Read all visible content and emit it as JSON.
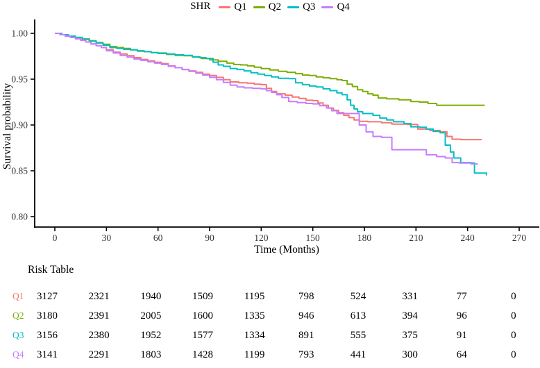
{
  "chart_data": {
    "type": "line",
    "subtype": "kaplan-meier-step",
    "title": "",
    "legend_title": "SHR",
    "legend_position": "top",
    "grid": false,
    "xlabel": "Time (Months)",
    "ylabel": "Survival probability",
    "x_ticks": [
      0,
      30,
      60,
      90,
      120,
      150,
      180,
      210,
      240,
      270
    ],
    "y_ticks": [
      1.0,
      0.95,
      0.9,
      0.85,
      0.8
    ],
    "xlim": [
      0,
      284
    ],
    "ylim": [
      0.8,
      1.0
    ],
    "series": [
      {
        "name": "Q1",
        "color": "#F8766D",
        "points": [
          [
            0,
            1.0
          ],
          [
            3,
            0.9985
          ],
          [
            6,
            0.997
          ],
          [
            9,
            0.9955
          ],
          [
            12,
            0.994
          ],
          [
            15,
            0.9925
          ],
          [
            18,
            0.9905
          ],
          [
            21,
            0.9885
          ],
          [
            24,
            0.9865
          ],
          [
            27,
            0.9845
          ],
          [
            30,
            0.982
          ],
          [
            34,
            0.9795
          ],
          [
            38,
            0.9775
          ],
          [
            42,
            0.9755
          ],
          [
            46,
            0.9735
          ],
          [
            50,
            0.9715
          ],
          [
            54,
            0.97
          ],
          [
            58,
            0.9685
          ],
          [
            62,
            0.967
          ],
          [
            66,
            0.9645
          ],
          [
            70,
            0.9625
          ],
          [
            74,
            0.9605
          ],
          [
            78,
            0.959
          ],
          [
            82,
            0.9575
          ],
          [
            86,
            0.9555
          ],
          [
            90,
            0.954
          ],
          [
            94,
            0.952
          ],
          [
            98,
            0.9495
          ],
          [
            102,
            0.947
          ],
          [
            107,
            0.946
          ],
          [
            112,
            0.9455
          ],
          [
            116,
            0.9445
          ],
          [
            120,
            0.944
          ],
          [
            123,
            0.94
          ],
          [
            126,
            0.9365
          ],
          [
            129,
            0.934
          ],
          [
            134,
            0.9325
          ],
          [
            138,
            0.9305
          ],
          [
            142,
            0.929
          ],
          [
            146,
            0.927
          ],
          [
            150,
            0.9265
          ],
          [
            153,
            0.924
          ],
          [
            156,
            0.9215
          ],
          [
            159,
            0.9185
          ],
          [
            162,
            0.916
          ],
          [
            165,
            0.9135
          ],
          [
            168,
            0.9105
          ],
          [
            171,
            0.908
          ],
          [
            174,
            0.9055
          ],
          [
            177,
            0.904
          ],
          [
            182,
            0.9035
          ],
          [
            190,
            0.9025
          ],
          [
            196,
            0.901
          ],
          [
            205,
            0.9005
          ],
          [
            211,
            0.8955
          ],
          [
            218,
            0.894
          ],
          [
            224,
            0.8925
          ],
          [
            228,
            0.8875
          ],
          [
            231,
            0.8845
          ],
          [
            236,
            0.884
          ],
          [
            248,
            0.8835
          ]
        ]
      },
      {
        "name": "Q2",
        "color": "#7CAE00",
        "points": [
          [
            0,
            1.0
          ],
          [
            4,
            0.9985
          ],
          [
            8,
            0.997
          ],
          [
            12,
            0.9955
          ],
          [
            16,
            0.994
          ],
          [
            20,
            0.992
          ],
          [
            24,
            0.99
          ],
          [
            28,
            0.988
          ],
          [
            32,
            0.9855
          ],
          [
            36,
            0.9845
          ],
          [
            40,
            0.9835
          ],
          [
            44,
            0.982
          ],
          [
            48,
            0.9805
          ],
          [
            52,
            0.98
          ],
          [
            56,
            0.979
          ],
          [
            60,
            0.978
          ],
          [
            65,
            0.977
          ],
          [
            70,
            0.976
          ],
          [
            75,
            0.9755
          ],
          [
            80,
            0.974
          ],
          [
            85,
            0.9725
          ],
          [
            90,
            0.971
          ],
          [
            95,
            0.9695
          ],
          [
            100,
            0.9675
          ],
          [
            104,
            0.966
          ],
          [
            108,
            0.9655
          ],
          [
            112,
            0.9645
          ],
          [
            116,
            0.963
          ],
          [
            120,
            0.9615
          ],
          [
            125,
            0.96
          ],
          [
            130,
            0.9585
          ],
          [
            135,
            0.9575
          ],
          [
            140,
            0.956
          ],
          [
            144,
            0.9545
          ],
          [
            148,
            0.954
          ],
          [
            152,
            0.9525
          ],
          [
            156,
            0.9515
          ],
          [
            160,
            0.9505
          ],
          [
            164,
            0.9495
          ],
          [
            167,
            0.9485
          ],
          [
            170,
            0.9445
          ],
          [
            173,
            0.942
          ],
          [
            176,
            0.9385
          ],
          [
            179,
            0.9365
          ],
          [
            182,
            0.934
          ],
          [
            185,
            0.9325
          ],
          [
            188,
            0.9295
          ],
          [
            193,
            0.9285
          ],
          [
            200,
            0.9275
          ],
          [
            207,
            0.9255
          ],
          [
            212,
            0.925
          ],
          [
            217,
            0.9235
          ],
          [
            222,
            0.9215
          ],
          [
            250,
            0.9215
          ]
        ]
      },
      {
        "name": "Q3",
        "color": "#00BFC4",
        "points": [
          [
            0,
            1.0
          ],
          [
            4,
            0.9985
          ],
          [
            8,
            0.997
          ],
          [
            12,
            0.9955
          ],
          [
            16,
            0.9935
          ],
          [
            20,
            0.9915
          ],
          [
            24,
            0.9895
          ],
          [
            28,
            0.987
          ],
          [
            32,
            0.9845
          ],
          [
            36,
            0.9835
          ],
          [
            40,
            0.9825
          ],
          [
            44,
            0.982
          ],
          [
            48,
            0.981
          ],
          [
            52,
            0.98
          ],
          [
            56,
            0.979
          ],
          [
            60,
            0.9785
          ],
          [
            65,
            0.9775
          ],
          [
            70,
            0.9765
          ],
          [
            75,
            0.976
          ],
          [
            80,
            0.9745
          ],
          [
            84,
            0.9735
          ],
          [
            88,
            0.9725
          ],
          [
            92,
            0.9685
          ],
          [
            95,
            0.9655
          ],
          [
            98,
            0.964
          ],
          [
            102,
            0.9615
          ],
          [
            106,
            0.9605
          ],
          [
            110,
            0.959
          ],
          [
            114,
            0.957
          ],
          [
            118,
            0.9555
          ],
          [
            122,
            0.954
          ],
          [
            126,
            0.9525
          ],
          [
            130,
            0.951
          ],
          [
            136,
            0.9505
          ],
          [
            140,
            0.946
          ],
          [
            144,
            0.944
          ],
          [
            148,
            0.9425
          ],
          [
            152,
            0.9415
          ],
          [
            156,
            0.9395
          ],
          [
            160,
            0.9375
          ],
          [
            164,
            0.935
          ],
          [
            167,
            0.933
          ],
          [
            170,
            0.9275
          ],
          [
            172,
            0.9215
          ],
          [
            174,
            0.9175
          ],
          [
            176,
            0.9145
          ],
          [
            179,
            0.9125
          ],
          [
            185,
            0.9105
          ],
          [
            189,
            0.9075
          ],
          [
            193,
            0.9055
          ],
          [
            197,
            0.9035
          ],
          [
            203,
            0.9015
          ],
          [
            207,
            0.898
          ],
          [
            212,
            0.8975
          ],
          [
            216,
            0.8955
          ],
          [
            220,
            0.893
          ],
          [
            224,
            0.8915
          ],
          [
            227,
            0.878
          ],
          [
            230,
            0.8705
          ],
          [
            232,
            0.864
          ],
          [
            236,
            0.859
          ],
          [
            242,
            0.8585
          ],
          [
            244,
            0.8475
          ],
          [
            251,
            0.845
          ]
        ]
      },
      {
        "name": "Q4",
        "color": "#C77CFF",
        "points": [
          [
            0,
            1.0
          ],
          [
            3,
            0.9985
          ],
          [
            6,
            0.997
          ],
          [
            9,
            0.9955
          ],
          [
            12,
            0.994
          ],
          [
            15,
            0.9925
          ],
          [
            18,
            0.9905
          ],
          [
            21,
            0.9885
          ],
          [
            24,
            0.9865
          ],
          [
            27,
            0.9845
          ],
          [
            30,
            0.981
          ],
          [
            34,
            0.9785
          ],
          [
            38,
            0.976
          ],
          [
            42,
            0.974
          ],
          [
            46,
            0.972
          ],
          [
            50,
            0.9705
          ],
          [
            54,
            0.969
          ],
          [
            58,
            0.9675
          ],
          [
            62,
            0.966
          ],
          [
            66,
            0.964
          ],
          [
            70,
            0.9625
          ],
          [
            74,
            0.9605
          ],
          [
            78,
            0.9585
          ],
          [
            82,
            0.9565
          ],
          [
            86,
            0.9545
          ],
          [
            90,
            0.952
          ],
          [
            94,
            0.9495
          ],
          [
            98,
            0.9465
          ],
          [
            102,
            0.9435
          ],
          [
            106,
            0.9415
          ],
          [
            110,
            0.9405
          ],
          [
            115,
            0.94
          ],
          [
            120,
            0.9395
          ],
          [
            123,
            0.9375
          ],
          [
            126,
            0.9355
          ],
          [
            129,
            0.933
          ],
          [
            132,
            0.93
          ],
          [
            136,
            0.9255
          ],
          [
            141,
            0.9245
          ],
          [
            146,
            0.9235
          ],
          [
            150,
            0.923
          ],
          [
            154,
            0.921
          ],
          [
            158,
            0.9185
          ],
          [
            161,
            0.9155
          ],
          [
            164,
            0.9125
          ],
          [
            176,
            0.9125
          ],
          [
            177,
            0.9
          ],
          [
            181,
            0.8925
          ],
          [
            185,
            0.8875
          ],
          [
            190,
            0.8865
          ],
          [
            196,
            0.873
          ],
          [
            213,
            0.873
          ],
          [
            216,
            0.8675
          ],
          [
            222,
            0.8655
          ],
          [
            227,
            0.864
          ],
          [
            231,
            0.859
          ],
          [
            235,
            0.8585
          ],
          [
            242,
            0.8575
          ],
          [
            246,
            0.8575
          ]
        ]
      }
    ]
  },
  "risk_table": {
    "title": "Risk Table",
    "time_points": [
      0,
      30,
      60,
      90,
      120,
      150,
      180,
      210,
      240,
      270
    ],
    "rows": [
      {
        "label": "Q1",
        "color": "#F8766D",
        "values": [
          3127,
          2321,
          1940,
          1509,
          1195,
          798,
          524,
          331,
          77,
          0
        ]
      },
      {
        "label": "Q2",
        "color": "#7CAE00",
        "values": [
          3180,
          2391,
          2005,
          1600,
          1335,
          946,
          613,
          394,
          96,
          0
        ]
      },
      {
        "label": "Q3",
        "color": "#00BFC4",
        "values": [
          3156,
          2380,
          1952,
          1577,
          1334,
          891,
          555,
          375,
          91,
          0
        ]
      },
      {
        "label": "Q4",
        "color": "#C77CFF",
        "values": [
          3141,
          2291,
          1803,
          1428,
          1199,
          793,
          441,
          300,
          64,
          0
        ]
      }
    ]
  }
}
